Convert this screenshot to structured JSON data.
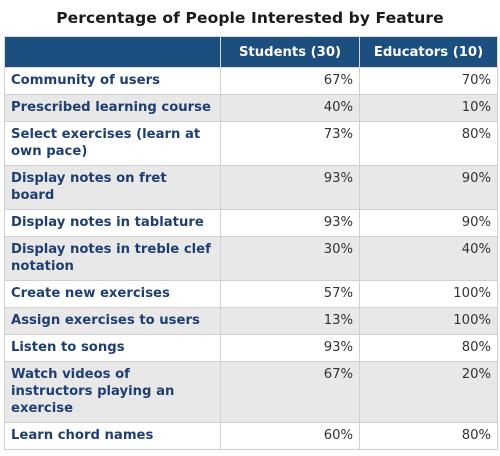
{
  "title": "Percentage of People Interested by Feature",
  "table": {
    "headers": [
      "",
      "Students (30)",
      "Educators (10)"
    ],
    "rows": [
      [
        "Community of users",
        "67%",
        "70%"
      ],
      [
        "Prescribed learning course",
        "40%",
        "10%"
      ],
      [
        "Select exercises (learn at own pace)",
        "73%",
        "80%"
      ],
      [
        "Display notes on fret board",
        "93%",
        "90%"
      ],
      [
        "Display notes in tablature",
        "93%",
        "90%"
      ],
      [
        "Display notes in treble clef notation",
        "30%",
        "40%"
      ],
      [
        "Create new exercises",
        "57%",
        "100%"
      ],
      [
        "Assign exercises to users",
        "13%",
        "100%"
      ],
      [
        "Listen to songs",
        "93%",
        "80%"
      ],
      [
        "Watch videos of instructors playing an exercise",
        "67%",
        "20%"
      ],
      [
        "Learn chord names",
        "60%",
        "80%"
      ]
    ]
  },
  "colors": {
    "header_bg": "#1c4e80",
    "header_text": "#ffffff",
    "feature_text": "#1f3f73",
    "alt_row_bg": "#e8e8e8"
  }
}
